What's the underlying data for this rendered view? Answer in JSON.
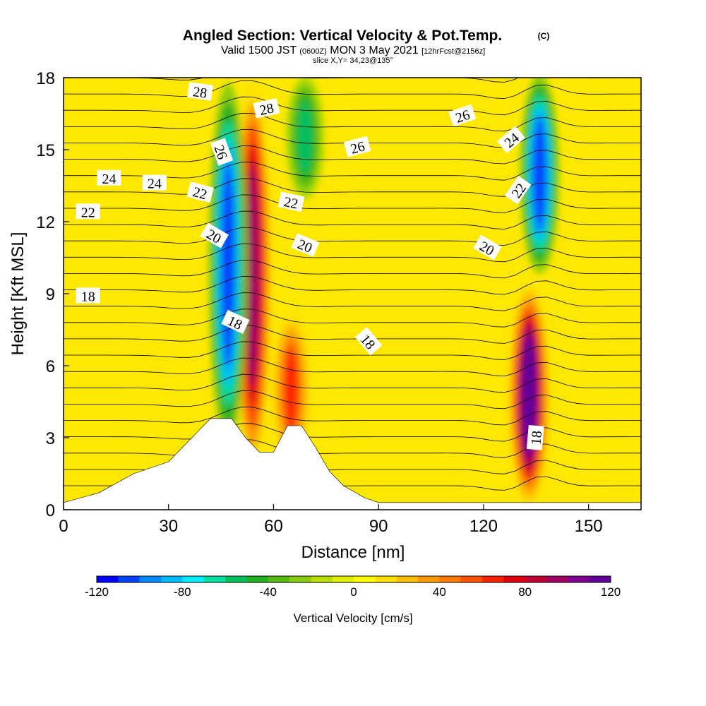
{
  "chart_data": {
    "type": "heatmap",
    "title": "Angled Section: Vertical Velocity & Pot.Temp.",
    "title_mark": "(C)",
    "subtitle": {
      "prefix": "Valid 1500 JST",
      "utc": "(0600Z)",
      "date": "MON 3 May 2021",
      "forecast": "[12hrFcst@2156z]"
    },
    "slice_label": "slice X,Y= 34,23@135°",
    "xlabel": "Distance [nm]",
    "ylabel": "Height [Kft MSL]",
    "xlim": [
      0,
      165
    ],
    "ylim": [
      0,
      18
    ],
    "xticks": [
      "0",
      "30",
      "60",
      "90",
      "120",
      "150"
    ],
    "yticks": [
      "0",
      "3",
      "6",
      "9",
      "12",
      "15",
      "18"
    ],
    "xtick_values": [
      0,
      30,
      60,
      90,
      120,
      150
    ],
    "ytick_values": [
      0,
      3,
      6,
      9,
      12,
      15,
      18
    ],
    "colorbar": {
      "label": "Vertical Velocity [cm/s]",
      "range": [
        -120,
        120
      ],
      "step": 10,
      "tick_values": [
        -120,
        -80,
        -40,
        0,
        40,
        80,
        120
      ],
      "ticks": [
        "-120",
        "-80",
        "-40",
        "0",
        "40",
        "80",
        "120"
      ],
      "colors": [
        "#0000ff",
        "#0044ff",
        "#0088ff",
        "#00bbff",
        "#00eeff",
        "#00dda0",
        "#00c060",
        "#22b022",
        "#55bb11",
        "#88cc11",
        "#bbdd00",
        "#ddee00",
        "#ffff00",
        "#ffe000",
        "#ffc000",
        "#ff9a00",
        "#ff7a00",
        "#ff5000",
        "#ff2200",
        "#e00010",
        "#c00030",
        "#a00060",
        "#800090",
        "#600099"
      ]
    },
    "features": [
      {
        "kind": "updraft",
        "x": 54,
        "z": [
          2,
          17.5
        ],
        "peak_w": 90
      },
      {
        "kind": "updraft",
        "x": 133,
        "z": [
          0.5,
          9
        ],
        "peak_w": 120
      },
      {
        "kind": "updraft",
        "x": 65,
        "z": [
          2,
          8
        ],
        "peak_w": 60
      },
      {
        "kind": "downdraft",
        "x": 47,
        "z": [
          3,
          17.5
        ],
        "peak_w": -110
      },
      {
        "kind": "downdraft",
        "x": 136,
        "z": [
          10,
          18
        ],
        "peak_w": -110
      },
      {
        "kind": "downdraft",
        "x": 69,
        "z": [
          13,
          18
        ],
        "peak_w": -60
      }
    ],
    "terrain_kft": [
      [
        0,
        0.3
      ],
      [
        10,
        0.7
      ],
      [
        20,
        1.5
      ],
      [
        30,
        2
      ],
      [
        38,
        3.2
      ],
      [
        42,
        3.8
      ],
      [
        48,
        3.8
      ],
      [
        52,
        3
      ],
      [
        56,
        2.4
      ],
      [
        60,
        2.4
      ],
      [
        64,
        3.5
      ],
      [
        68,
        3.5
      ],
      [
        72,
        2.6
      ],
      [
        76,
        1.6
      ],
      [
        80,
        1
      ],
      [
        86,
        0.5
      ],
      [
        90,
        0.3
      ],
      [
        165,
        0.3
      ]
    ],
    "contour_labels": [
      {
        "text": "28",
        "x": 39,
        "z": 17.4,
        "rot": 8
      },
      {
        "text": "28",
        "x": 58,
        "z": 16.7,
        "rot": -12
      },
      {
        "text": "26",
        "x": 45,
        "z": 14.9,
        "rot": 70
      },
      {
        "text": "26",
        "x": 84,
        "z": 15.1,
        "rot": -15
      },
      {
        "text": "26",
        "x": 114,
        "z": 16.4,
        "rot": -18
      },
      {
        "text": "24",
        "x": 13,
        "z": 13.8,
        "rot": 0
      },
      {
        "text": "24",
        "x": 26,
        "z": 13.6,
        "rot": 0
      },
      {
        "text": "24",
        "x": 128,
        "z": 15.4,
        "rot": -40
      },
      {
        "text": "22",
        "x": 7,
        "z": 12.4,
        "rot": 0
      },
      {
        "text": "22",
        "x": 39,
        "z": 13.2,
        "rot": 15
      },
      {
        "text": "22",
        "x": 65,
        "z": 12.8,
        "rot": 12
      },
      {
        "text": "22",
        "x": 130,
        "z": 13.3,
        "rot": -55
      },
      {
        "text": "20",
        "x": 43,
        "z": 11.4,
        "rot": 30
      },
      {
        "text": "20",
        "x": 69,
        "z": 11.0,
        "rot": 22
      },
      {
        "text": "20",
        "x": 121,
        "z": 10.9,
        "rot": 30
      },
      {
        "text": "18",
        "x": 7,
        "z": 8.9,
        "rot": 0
      },
      {
        "text": "18",
        "x": 49,
        "z": 7.8,
        "rot": 25
      },
      {
        "text": "18",
        "x": 87,
        "z": 7.0,
        "rot": 50
      },
      {
        "text": "18",
        "x": 135,
        "z": 3.0,
        "rot": -85
      }
    ]
  }
}
